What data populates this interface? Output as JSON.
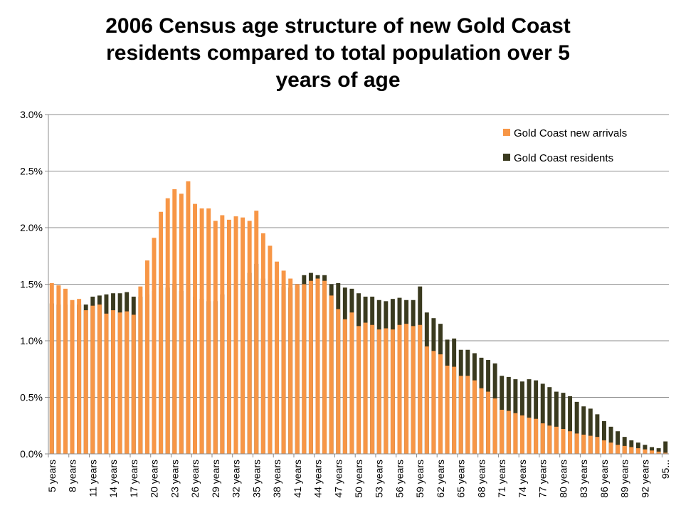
{
  "chart_data": {
    "type": "bar",
    "title_lines": [
      "2006 Census age structure of new Gold Coast",
      "residents compared to total population over 5",
      "years of age"
    ],
    "xlabel": "",
    "ylabel": "",
    "ylim": [
      0,
      0.03
    ],
    "yticks": [
      "0.0%",
      "0.5%",
      "1.0%",
      "1.5%",
      "2.0%",
      "2.5%",
      "3.0%"
    ],
    "grid": true,
    "legend_position": "top-right",
    "legend": [
      "Gold Coast new arrivals",
      "Gold Coast residents"
    ],
    "colors": {
      "new_arrivals": "#F79646",
      "residents": "#3A3A1F"
    },
    "categories": [
      "5 years",
      "6 years",
      "7 years",
      "8 years",
      "9 years",
      "10 years",
      "11 years",
      "12 years",
      "13 years",
      "14 years",
      "15 years",
      "16 years",
      "17 years",
      "18 years",
      "19 years",
      "20 years",
      "21 years",
      "22 years",
      "23 years",
      "24 years",
      "25 years",
      "26 years",
      "27 years",
      "28 years",
      "29 years",
      "30 years",
      "31 years",
      "32 years",
      "33 years",
      "34 years",
      "35 years",
      "36 years",
      "37 years",
      "38 years",
      "39 years",
      "40 years",
      "41 years",
      "42 years",
      "43 years",
      "44 years",
      "45 years",
      "46 years",
      "47 years",
      "48 years",
      "49 years",
      "50 years",
      "51 years",
      "52 years",
      "53 years",
      "54 years",
      "55 years",
      "56 years",
      "57 years",
      "58 years",
      "59 years",
      "60 years",
      "61 years",
      "62 years",
      "63 years",
      "64 years",
      "65 years",
      "66 years",
      "67 years",
      "68 years",
      "69 years",
      "70 years",
      "71 years",
      "72 years",
      "73 years",
      "74 years",
      "75 years",
      "76 years",
      "77 years",
      "78 years",
      "79 years",
      "80 years",
      "81 years",
      "82 years",
      "83 years",
      "84 years",
      "85 years",
      "86 years",
      "87 years",
      "88 years",
      "89 years",
      "90 years",
      "91 years",
      "92 years",
      "93 years",
      "94 years",
      "95..."
    ],
    "x_tick_labels": [
      "5 years",
      "8 years",
      "11 years",
      "14 years",
      "17 years",
      "20 years",
      "23 years",
      "26 years",
      "29 years",
      "32 years",
      "35 years",
      "38 years",
      "41 years",
      "44 years",
      "47 years",
      "50 years",
      "53 years",
      "56 years",
      "59 years",
      "62 years",
      "65 years",
      "68 years",
      "71 years",
      "74 years",
      "77 years",
      "80 years",
      "83 years",
      "86 years",
      "89 years",
      "92 years",
      "95..."
    ],
    "series": [
      {
        "name": "Gold Coast new arrivals",
        "values": [
          0.0151,
          0.0149,
          0.0146,
          0.0136,
          0.0137,
          0.0127,
          0.0131,
          0.0132,
          0.0124,
          0.0127,
          0.0125,
          0.0126,
          0.0123,
          0.0148,
          0.0171,
          0.0191,
          0.0214,
          0.0226,
          0.0234,
          0.023,
          0.0241,
          0.0221,
          0.0217,
          0.0217,
          0.0206,
          0.0211,
          0.0207,
          0.021,
          0.0209,
          0.0206,
          0.0215,
          0.0195,
          0.0184,
          0.017,
          0.0162,
          0.0155,
          0.015,
          0.015,
          0.0153,
          0.0155,
          0.0153,
          0.014,
          0.0128,
          0.0119,
          0.0125,
          0.0113,
          0.0116,
          0.0114,
          0.011,
          0.0111,
          0.011,
          0.0114,
          0.0115,
          0.0113,
          0.0114,
          0.0095,
          0.0091,
          0.0088,
          0.0078,
          0.0077,
          0.0069,
          0.0069,
          0.0065,
          0.0058,
          0.0055,
          0.0049,
          0.0039,
          0.0038,
          0.0036,
          0.0034,
          0.0032,
          0.0031,
          0.0027,
          0.0025,
          0.0024,
          0.0022,
          0.002,
          0.0018,
          0.0017,
          0.0016,
          0.0015,
          0.0012,
          0.001,
          0.0008,
          0.0007,
          0.0006,
          0.0005,
          0.0004,
          0.0003,
          0.0002,
          0.0001
        ]
      },
      {
        "name": "Gold Coast residents",
        "values": [
          0.0133,
          0.0132,
          0.0132,
          0.0132,
          0.0132,
          0.0132,
          0.0139,
          0.014,
          0.0141,
          0.0142,
          0.0142,
          0.0143,
          0.0139,
          0.0139,
          0.0141,
          0.0144,
          0.0148,
          0.0147,
          0.015,
          0.0144,
          0.0149,
          0.0139,
          0.0137,
          0.0135,
          0.0135,
          0.0141,
          0.0148,
          0.015,
          0.0154,
          0.016,
          0.0168,
          0.0155,
          0.0154,
          0.0146,
          0.0148,
          0.0147,
          0.0149,
          0.0158,
          0.016,
          0.0158,
          0.0158,
          0.015,
          0.0151,
          0.0147,
          0.0146,
          0.0142,
          0.0139,
          0.0139,
          0.0136,
          0.0135,
          0.0137,
          0.0138,
          0.0136,
          0.0136,
          0.0148,
          0.0125,
          0.012,
          0.0115,
          0.0101,
          0.0102,
          0.0092,
          0.0092,
          0.0089,
          0.0085,
          0.0083,
          0.008,
          0.0069,
          0.0068,
          0.0066,
          0.0064,
          0.0066,
          0.0065,
          0.0062,
          0.0059,
          0.0055,
          0.0054,
          0.0051,
          0.0046,
          0.0042,
          0.004,
          0.0035,
          0.0029,
          0.0024,
          0.002,
          0.0015,
          0.0012,
          0.001,
          0.0008,
          0.0006,
          0.0005,
          0.0011
        ]
      }
    ]
  }
}
